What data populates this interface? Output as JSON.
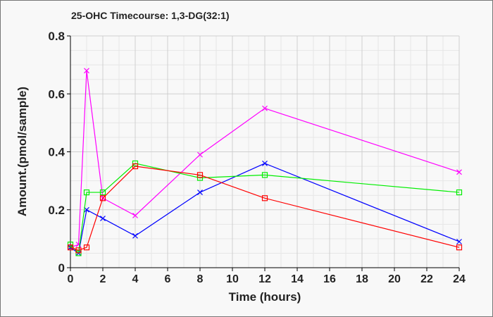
{
  "chart_data": {
    "type": "line",
    "title": "25-OHC Timecourse: 1,3-DG(32:1)",
    "xlabel": "Time (hours)",
    "ylabel": "Amount.(pmol/sample)",
    "xlim": [
      0,
      24
    ],
    "ylim": [
      0,
      0.8
    ],
    "xticks": [
      "0",
      "2",
      "4",
      "6",
      "8",
      "10",
      "12",
      "14",
      "16",
      "18",
      "20",
      "22",
      "24"
    ],
    "yticks": [
      "0",
      "0.2",
      "0.4",
      "0.6",
      "0.8"
    ],
    "grid": true,
    "x": [
      0,
      0.5,
      1,
      2,
      4,
      8,
      12,
      24
    ],
    "series": [
      {
        "name": "magenta",
        "color": "#ff00ff",
        "marker": "x",
        "values": [
          0.07,
          0.08,
          0.68,
          0.24,
          0.18,
          0.39,
          0.55,
          0.33
        ]
      },
      {
        "name": "blue",
        "color": "#0000ff",
        "marker": "x",
        "values": [
          0.07,
          0.05,
          0.2,
          0.17,
          0.11,
          0.26,
          0.36,
          0.09
        ]
      },
      {
        "name": "green",
        "color": "#00ee00",
        "marker": "square",
        "values": [
          0.08,
          0.05,
          0.26,
          0.26,
          0.36,
          0.31,
          0.32,
          0.26
        ]
      },
      {
        "name": "red",
        "color": "#ff0000",
        "marker": "square",
        "values": [
          0.07,
          0.06,
          0.07,
          0.24,
          0.35,
          0.32,
          0.24,
          0.07
        ]
      }
    ]
  }
}
